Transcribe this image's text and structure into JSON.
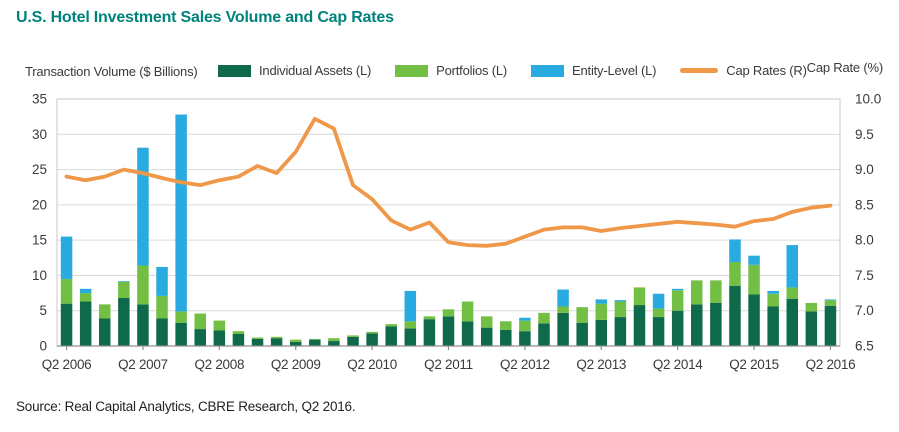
{
  "title": "U.S. Hotel Investment Sales Volume and Cap Rates",
  "left_axis_title": "Transaction Volume ($ Billions)",
  "right_axis_title": "Cap Rate (%)",
  "source": "Source: Real Capital Analytics, CBRE Research, Q2 2016.",
  "legend": [
    {
      "label": "Individual Assets (L)",
      "color": "#0E6A4B",
      "swatch": "box"
    },
    {
      "label": "Portfolios (L)",
      "color": "#72BF44",
      "swatch": "box"
    },
    {
      "label": "Entity-Level (L)",
      "color": "#29ABE2",
      "swatch": "box"
    },
    {
      "label": "Cap Rates (R)",
      "color": "#EF9849",
      "swatch": "line"
    }
  ],
  "colors": {
    "individual": "#0E6A4B",
    "portfolios": "#72BF44",
    "entity": "#29ABE2",
    "cap_line": "#EF9849",
    "title_teal": "#00837B",
    "grid": "#DADADA",
    "frame": "#C9C9C9",
    "axis": "#8F8F8F",
    "tick_text": "#3A3A3A"
  },
  "chart_data": {
    "type": "bar",
    "subtype": "stacked-bars-with-line-overlay",
    "title": "U.S. Hotel Investment Sales Volume and Cap Rates",
    "xlabel": "",
    "ylabel_left": "Transaction Volume ($ Billions)",
    "ylabel_right": "Cap Rate (%)",
    "grid": "horizontal",
    "legend_position": "top",
    "left_axis": {
      "min": 0,
      "max": 35,
      "step": 5
    },
    "right_axis": {
      "min": 6.5,
      "max": 10.0,
      "step": 0.5
    },
    "x_tick_indices": [
      0,
      4,
      8,
      12,
      16,
      20,
      24,
      28,
      32,
      36,
      40
    ],
    "x_tick_labels": [
      "Q2 2006",
      "Q2 2007",
      "Q2 2008",
      "Q2 2009",
      "Q2 2010",
      "Q2 2011",
      "Q2 2012",
      "Q2 2013",
      "Q2 2014",
      "Q2 2015",
      "Q2 2016"
    ],
    "categories": [
      "Q2 2006",
      "Q3 2006",
      "Q4 2006",
      "Q1 2007",
      "Q2 2007",
      "Q3 2007",
      "Q4 2007",
      "Q1 2008",
      "Q2 2008",
      "Q3 2008",
      "Q4 2008",
      "Q1 2009",
      "Q2 2009",
      "Q3 2009",
      "Q4 2009",
      "Q1 2010",
      "Q2 2010",
      "Q3 2010",
      "Q4 2010",
      "Q1 2011",
      "Q2 2011",
      "Q3 2011",
      "Q4 2011",
      "Q1 2012",
      "Q2 2012",
      "Q3 2012",
      "Q4 2012",
      "Q1 2013",
      "Q2 2013",
      "Q3 2013",
      "Q4 2013",
      "Q1 2014",
      "Q2 2014",
      "Q3 2014",
      "Q4 2014",
      "Q1 2015",
      "Q2 2015",
      "Q3 2015",
      "Q4 2015",
      "Q1 2016",
      "Q2 2016"
    ],
    "series": [
      {
        "name": "Individual Assets (L)",
        "type": "bar",
        "axis": "left",
        "stack": true,
        "values": [
          6.0,
          6.3,
          3.9,
          6.8,
          5.9,
          3.9,
          3.3,
          2.4,
          2.2,
          1.7,
          1.0,
          1.1,
          0.6,
          0.9,
          0.7,
          1.3,
          1.8,
          2.8,
          2.5,
          3.8,
          4.2,
          3.5,
          2.6,
          2.3,
          2.1,
          3.2,
          4.7,
          3.3,
          3.7,
          4.1,
          5.8,
          4.1,
          5.0,
          5.9,
          6.1,
          8.5,
          7.3,
          5.6,
          6.7,
          4.9,
          5.7
        ]
      },
      {
        "name": "Portfolios (L)",
        "type": "bar",
        "axis": "left",
        "stack": true,
        "values": [
          3.5,
          1.2,
          2.0,
          2.3,
          5.5,
          3.2,
          1.6,
          2.2,
          1.4,
          0.4,
          0.2,
          0.2,
          0.3,
          0.1,
          0.4,
          0.2,
          0.2,
          0.3,
          1.0,
          0.4,
          1.0,
          2.8,
          1.6,
          1.2,
          1.5,
          1.5,
          0.9,
          2.2,
          2.3,
          2.2,
          2.5,
          1.2,
          2.9,
          3.4,
          3.2,
          3.4,
          4.2,
          1.8,
          1.6,
          1.2,
          0.8
        ]
      },
      {
        "name": "Entity-Level (L)",
        "type": "bar",
        "axis": "left",
        "stack": true,
        "values": [
          6.0,
          0.6,
          0,
          0.1,
          16.7,
          4.1,
          27.9,
          0,
          0,
          0,
          0,
          0,
          0,
          0,
          0,
          0,
          0,
          0,
          4.3,
          0,
          0,
          0,
          0,
          0,
          0.4,
          0,
          2.4,
          0,
          0.6,
          0.2,
          0,
          2.1,
          0.2,
          0,
          0,
          3.2,
          1.3,
          0.4,
          6.0,
          0,
          0.1
        ]
      },
      {
        "name": "Cap Rates (R)",
        "type": "line",
        "axis": "right",
        "values": [
          8.9,
          8.85,
          8.9,
          9.0,
          8.95,
          8.88,
          8.82,
          8.78,
          8.85,
          8.9,
          9.05,
          8.95,
          9.25,
          9.72,
          9.58,
          8.78,
          8.58,
          8.28,
          8.15,
          8.25,
          7.97,
          7.93,
          7.92,
          7.95,
          8.05,
          8.15,
          8.18,
          8.18,
          8.13,
          8.17,
          8.2,
          8.23,
          8.26,
          8.24,
          8.22,
          8.19,
          8.27,
          8.3,
          8.4,
          8.46,
          8.49
        ]
      }
    ]
  }
}
